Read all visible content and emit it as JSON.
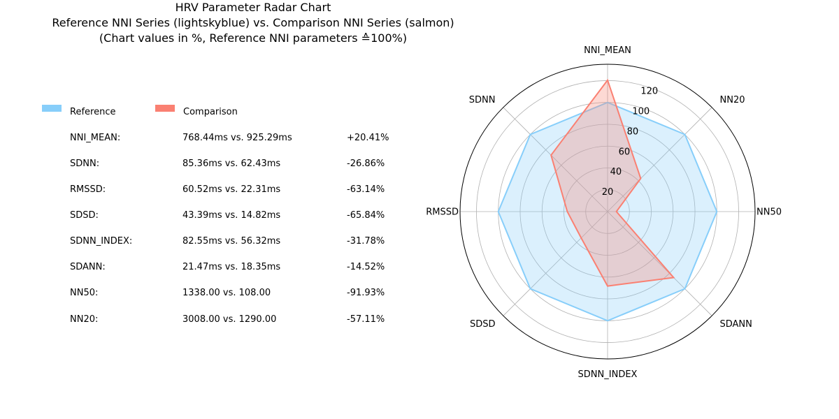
{
  "title": {
    "line1": "HRV Parameter Radar Chart",
    "line2": "Reference NNI Series (lightskyblue) vs. Comparison NNI Series (salmon)",
    "line3": "(Chart values in %, Reference NNI parameters ≙100%)"
  },
  "legend": {
    "reference": {
      "label": "Reference",
      "color": "#87cefa"
    },
    "comparison": {
      "label": "Comparison",
      "color": "#fa8072"
    }
  },
  "table": [
    {
      "name": "NNI_MEAN:",
      "values": "768.44ms vs. 925.29ms",
      "diff": "+20.41%"
    },
    {
      "name": "SDNN:",
      "values": "85.36ms vs. 62.43ms",
      "diff": "-26.86%"
    },
    {
      "name": "RMSSD:",
      "values": "60.52ms vs. 22.31ms",
      "diff": "-63.14%"
    },
    {
      "name": "SDSD:",
      "values": "43.39ms vs. 14.82ms",
      "diff": "-65.84%"
    },
    {
      "name": "SDNN_INDEX:",
      "values": "82.55ms vs. 56.32ms",
      "diff": "-31.78%"
    },
    {
      "name": "SDANN:",
      "values": "21.47ms vs. 18.35ms",
      "diff": "-14.52%"
    },
    {
      "name": "NN50:",
      "values": "1338.00 vs. 108.00",
      "diff": "-91.93%"
    },
    {
      "name": "NN20:",
      "values": "3008.00 vs. 1290.00",
      "diff": "-57.11%"
    }
  ],
  "chart_data": {
    "type": "radar",
    "axes": [
      "NNI_MEAN",
      "NN20",
      "NN50",
      "SDANN",
      "SDNN_INDEX",
      "SDSD",
      "RMSSD",
      "SDNN"
    ],
    "rlim": [
      0,
      135
    ],
    "rticks": [
      20,
      40,
      60,
      80,
      100,
      120
    ],
    "grid": true,
    "series": [
      {
        "name": "Reference",
        "color": "#87cefa",
        "values": [
          100,
          100,
          100,
          100,
          100,
          100,
          100,
          100
        ]
      },
      {
        "name": "Comparison",
        "color": "#fa8072",
        "values": [
          120.41,
          42.89,
          8.07,
          85.48,
          68.22,
          34.16,
          36.86,
          73.14
        ]
      }
    ]
  }
}
